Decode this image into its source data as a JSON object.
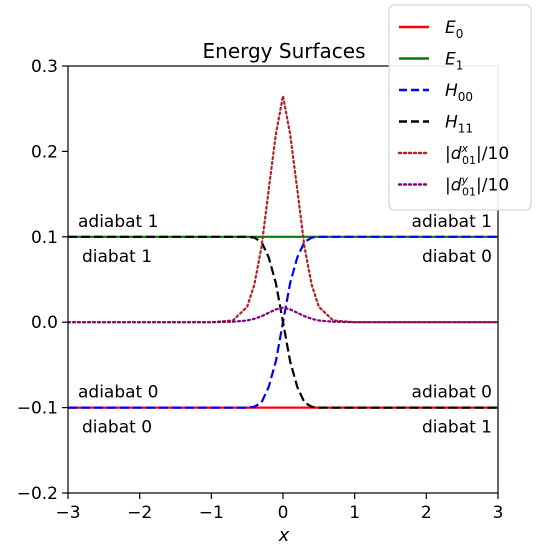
{
  "chart_data": {
    "type": "line",
    "title": "Energy Surfaces",
    "xlabel": "x",
    "ylabel": "",
    "xlim": [
      -3,
      3
    ],
    "ylim": [
      -0.2,
      0.3
    ],
    "xticks": [
      -3,
      -2,
      -1,
      0,
      1,
      2,
      3
    ],
    "xtick_labels": [
      "−3",
      "−2",
      "−1",
      "0",
      "1",
      "2",
      "3"
    ],
    "yticks": [
      -0.2,
      -0.1,
      0.0,
      0.1,
      0.2,
      0.3
    ],
    "ytick_labels": [
      "−0.2",
      "−0.1",
      "0.0",
      "0.1",
      "0.2",
      "0.3"
    ],
    "grid": false,
    "legend_position": "top-right",
    "x": [
      -3.0,
      -2.5,
      -2.0,
      -1.5,
      -1.0,
      -0.7,
      -0.5,
      -0.4,
      -0.3,
      -0.2,
      -0.1,
      0.0,
      0.1,
      0.2,
      0.3,
      0.4,
      0.5,
      0.7,
      1.0,
      1.5,
      2.0,
      2.5,
      3.0
    ],
    "series": [
      {
        "name": "E_0",
        "color": "#ff0000",
        "dash": "solid",
        "values": [
          -0.1,
          -0.1,
          -0.1,
          -0.1,
          -0.1,
          -0.1,
          -0.1,
          -0.1,
          -0.1,
          -0.1,
          -0.1,
          -0.1,
          -0.1,
          -0.1,
          -0.1,
          -0.1,
          -0.1,
          -0.1,
          -0.1,
          -0.1,
          -0.1,
          -0.1,
          -0.1
        ]
      },
      {
        "name": "E_1",
        "color": "#008000",
        "dash": "solid",
        "values": [
          0.1,
          0.1,
          0.1,
          0.1,
          0.1,
          0.1,
          0.1,
          0.1,
          0.1,
          0.1,
          0.1,
          0.1,
          0.1,
          0.1,
          0.1,
          0.1,
          0.1,
          0.1,
          0.1,
          0.1,
          0.1,
          0.1,
          0.1
        ]
      },
      {
        "name": "H_00",
        "color": "#0000ff",
        "dash": "dashed",
        "values": [
          -0.1,
          -0.1,
          -0.1,
          -0.1,
          -0.1,
          -0.1,
          -0.1,
          -0.099,
          -0.094,
          -0.076,
          -0.046,
          0.0,
          0.046,
          0.076,
          0.094,
          0.099,
          0.1,
          0.1,
          0.1,
          0.1,
          0.1,
          0.1,
          0.1
        ]
      },
      {
        "name": "H_11",
        "color": "#000000",
        "dash": "dashed",
        "values": [
          0.1,
          0.1,
          0.1,
          0.1,
          0.1,
          0.1,
          0.1,
          0.099,
          0.094,
          0.076,
          0.046,
          0.0,
          -0.046,
          -0.076,
          -0.094,
          -0.099,
          -0.1,
          -0.1,
          -0.1,
          -0.1,
          -0.1,
          -0.1,
          -0.1
        ]
      },
      {
        "name": "|d^x_01|/10",
        "color": "#b22222",
        "dash": "dotted",
        "values": [
          0.0,
          0.0,
          0.0,
          0.0,
          0.0,
          0.002,
          0.018,
          0.044,
          0.088,
          0.155,
          0.22,
          0.265,
          0.22,
          0.155,
          0.088,
          0.044,
          0.018,
          0.002,
          0.0,
          0.0,
          0.0,
          0.0,
          0.0
        ]
      },
      {
        "name": "|d^y_01|/10",
        "color": "#800080",
        "dash": "dotted",
        "values": [
          0.0,
          0.0,
          0.0,
          0.0,
          0.0,
          0.0005,
          0.002,
          0.004,
          0.007,
          0.011,
          0.015,
          0.017,
          0.015,
          0.011,
          0.007,
          0.004,
          0.002,
          0.0005,
          0.0,
          0.0,
          0.0,
          0.0,
          0.0
        ]
      }
    ],
    "annotations": [
      {
        "text": "adiabat 1",
        "x": -3.0,
        "y": 0.1,
        "anchor": "start",
        "pos": "above"
      },
      {
        "text": "diabat 1",
        "x": -3.0,
        "y": 0.1,
        "anchor": "start",
        "pos": "below"
      },
      {
        "text": "adiabat 1",
        "x": 3.0,
        "y": 0.1,
        "anchor": "end",
        "pos": "above"
      },
      {
        "text": "diabat 0",
        "x": 3.0,
        "y": 0.1,
        "anchor": "end",
        "pos": "below"
      },
      {
        "text": "adiabat 0",
        "x": -3.0,
        "y": -0.1,
        "anchor": "start",
        "pos": "above"
      },
      {
        "text": "diabat 0",
        "x": -3.0,
        "y": -0.1,
        "anchor": "start",
        "pos": "below"
      },
      {
        "text": "adiabat 0",
        "x": 3.0,
        "y": -0.1,
        "anchor": "end",
        "pos": "above"
      },
      {
        "text": "diabat 1",
        "x": 3.0,
        "y": -0.1,
        "anchor": "end",
        "pos": "below"
      }
    ]
  }
}
